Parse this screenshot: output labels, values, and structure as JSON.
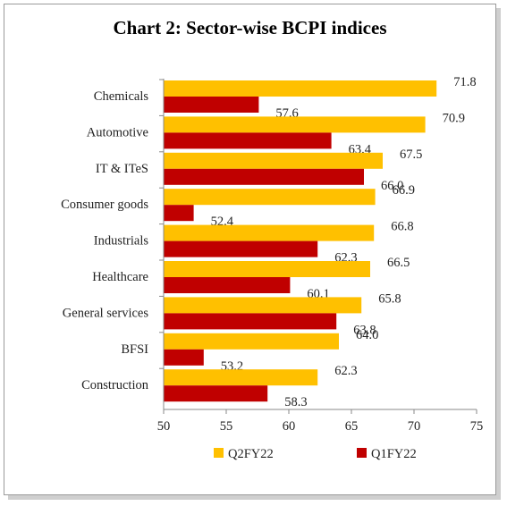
{
  "chart_data": {
    "type": "bar",
    "orientation": "horizontal",
    "title": "Chart 2: Sector-wise BCPI indices",
    "categories": [
      "Chemicals",
      "Automotive",
      "IT & ITeS",
      "Consumer goods",
      "Industrials",
      "Healthcare",
      "General services",
      "BFSI",
      "Construction"
    ],
    "series": [
      {
        "name": "Q2FY22",
        "color": "#FFC000",
        "values": [
          71.8,
          70.9,
          67.5,
          66.9,
          66.8,
          66.5,
          65.8,
          64.0,
          62.3
        ],
        "labels": [
          "71.8",
          "70.9",
          "67.5",
          "66.9",
          "66.8",
          "66.5",
          "65.8",
          "64.0",
          "62.3"
        ]
      },
      {
        "name": "Q1FY22",
        "color": "#C00000",
        "values": [
          57.6,
          63.4,
          66.0,
          52.4,
          62.3,
          60.1,
          63.8,
          53.2,
          58.3
        ],
        "labels": [
          "57.6",
          "63.4",
          "66.0",
          "52.4",
          "62.3",
          "60.1",
          "63.8",
          "53.2",
          "58.3"
        ]
      }
    ],
    "xlim": [
      50,
      75
    ],
    "xticks": [
      "50",
      "55",
      "60",
      "65",
      "70",
      "75"
    ],
    "grid": false,
    "legend": "bottom"
  }
}
